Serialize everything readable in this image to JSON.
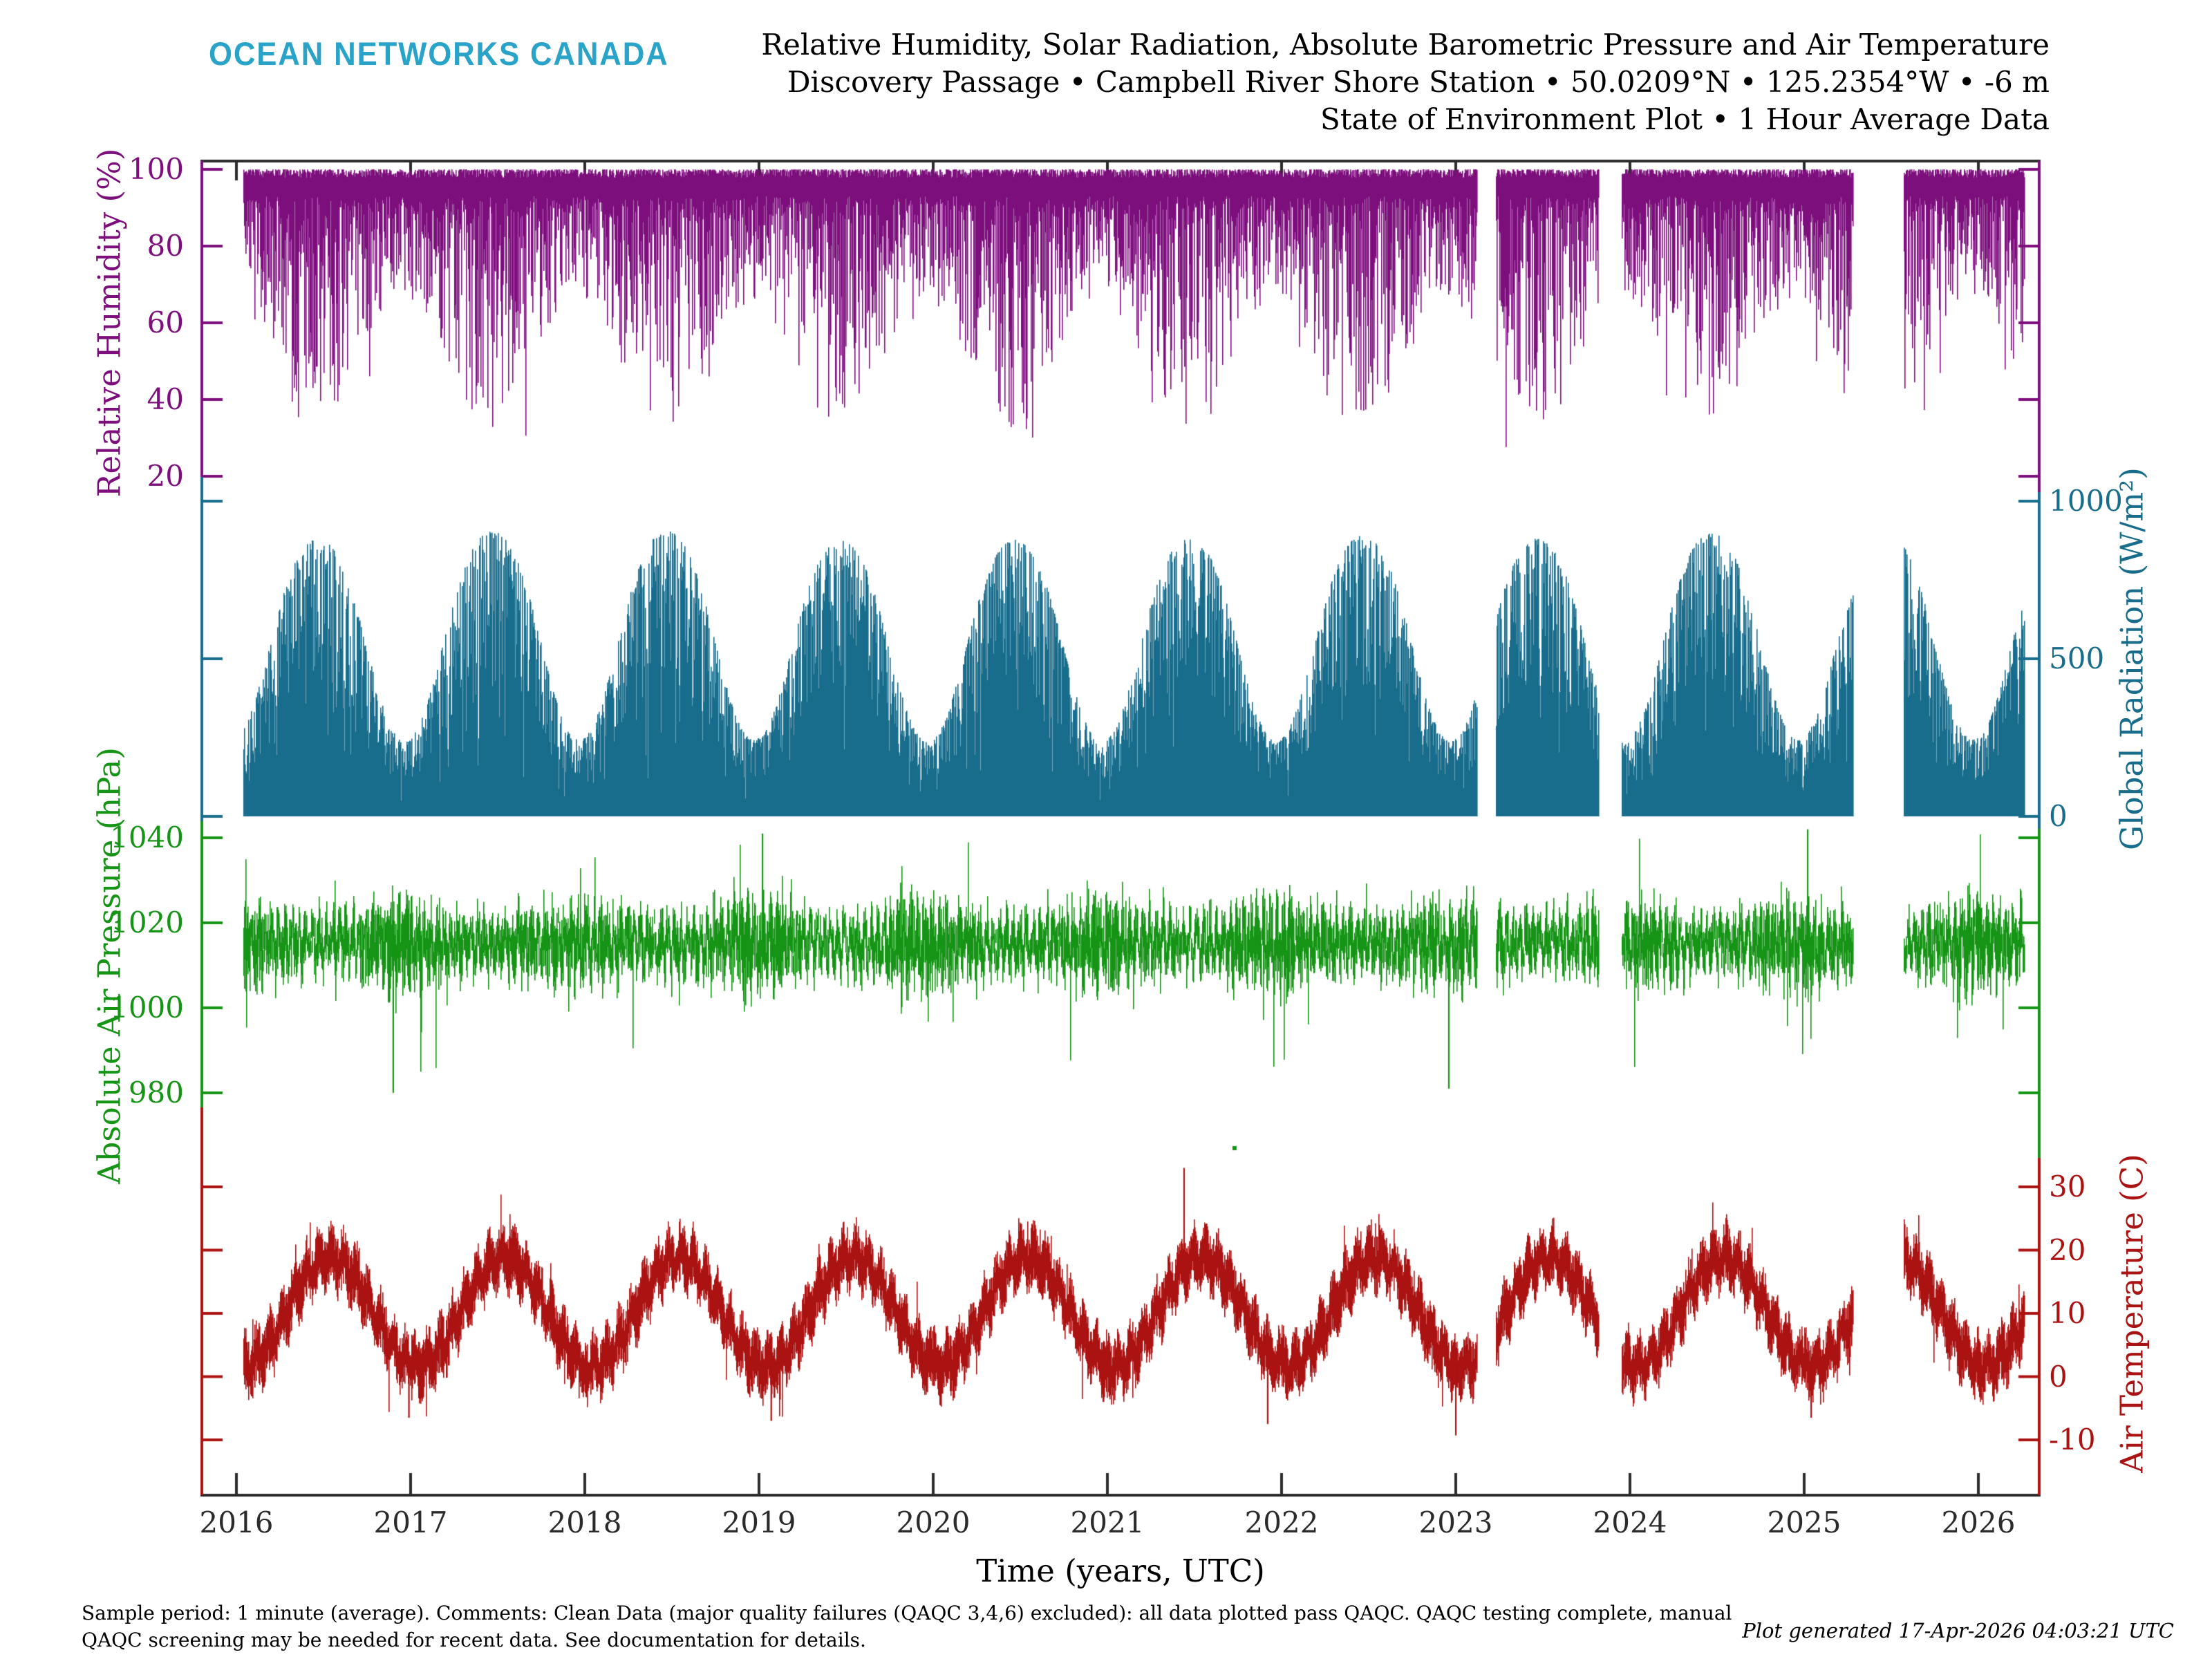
{
  "header": {
    "logo": "OCEAN NETWORKS CANADA",
    "logo_color": "#2aa3c9",
    "title_line1": "Relative Humidity, Solar Radiation, Absolute Barometric Pressure and Air Temperature",
    "title_line2": "Discovery Passage • Campbell River Shore Station • 50.0209°N • 125.2354°W • -6 m",
    "title_line3": "State of Environment Plot • 1 Hour Average Data"
  },
  "footer": {
    "note_line1": "Sample period: 1 minute (average). Comments: Clean Data (major quality failures (QAQC 3,4,6) excluded): all data plotted pass QAQC. QAQC testing complete, manual",
    "note_line2": "QAQC screening may be needed for recent data. See documentation for details.",
    "generated": "Plot generated 17-Apr-2026 04:03:21 UTC"
  },
  "chart_data": {
    "type": "line",
    "title": "Relative Humidity, Solar Radiation, Absolute Barometric Pressure and Air Temperature",
    "xlabel": "Time (years, UTC)",
    "x_range": [
      2015.8,
      2026.35
    ],
    "x_ticks": [
      2016,
      2017,
      2018,
      2019,
      2020,
      2021,
      2022,
      2023,
      2024,
      2025,
      2026
    ],
    "data_start": 2016.04,
    "data_end": 2026.26,
    "gaps": [
      [
        2023.12,
        2023.23
      ],
      [
        2023.82,
        2023.95
      ],
      [
        2025.28,
        2025.57
      ]
    ],
    "seed": 1337,
    "frame_color": "#2b2b2b",
    "panels": [
      {
        "id": "relative_humidity",
        "axis_label": "Relative Humidity (%)",
        "unit": "%",
        "color": "#7d0f7d",
        "label_side": "left",
        "ticks": [
          100,
          80,
          60,
          40,
          20
        ],
        "ylim": [
          10,
          102
        ],
        "model": "humidity",
        "params": {
          "top_jitter": 2.2,
          "base_dip": 7,
          "dip_winter": 26,
          "dip_summer": 60,
          "dip_pow": 1.7,
          "deep_prob": 0.06,
          "deep_extra": 20,
          "min": 16,
          "season_phase": 0.205
        },
        "events": []
      },
      {
        "id": "global_radiation",
        "axis_label": "Global Radiation (W/m²)",
        "unit": "W/m²",
        "color": "#186c8c",
        "label_side": "right",
        "ticks": [
          1000,
          500,
          0
        ],
        "ylim": [
          0,
          1050
        ],
        "model": "radiation",
        "params": {
          "max_flux": 1045,
          "elev_base": 40,
          "declination": 23.44,
          "equinox": 0.216,
          "shape": 1.15,
          "cloud_max": 0.55,
          "cloud_pow": 2.2,
          "deep_cloud_prob": 0.06,
          "year_variation": 0.05
        },
        "events": []
      },
      {
        "id": "absolute_air_pressure",
        "axis_label": "Absolute Air Pressure (hPa)",
        "unit": "hPa",
        "color": "#159415",
        "label_side": "left",
        "ticks": [
          1040,
          1020,
          1000,
          980
        ],
        "ylim": [
          976,
          1043
        ],
        "model": "pressure",
        "params": {
          "mean": 1015.5,
          "noise": 4.5,
          "wobble": 3,
          "wobble_freq": 26,
          "spread_min": 1.5,
          "spread_rand": 5,
          "winter_extra": 5,
          "low_spike_prob": 0.02,
          "low_spike_max": 24,
          "high_spike_prob": 0.012,
          "high_spike_max": 16,
          "min": 976.5,
          "max": 1042.5,
          "season_phase": 0.205
        },
        "events": [
          {
            "t": 2019.02,
            "value": 1041
          },
          {
            "t": 2025.02,
            "value": 1042
          },
          {
            "t": 2016.9,
            "value": 980
          },
          {
            "t": 2022.96,
            "value": 981
          },
          {
            "t": 2021.73,
            "value": 967,
            "detached": true
          }
        ]
      },
      {
        "id": "air_temperature",
        "axis_label": "Air Temperature (C)",
        "unit": "C",
        "color": "#ab1212",
        "label_side": "right",
        "ticks": [
          30,
          20,
          10,
          0,
          -10
        ],
        "ylim": [
          -10,
          33
        ],
        "model": "temperature",
        "params": {
          "mean": 10.2,
          "amp": 8.6,
          "phase": 0.285,
          "wobble": 1.6,
          "wobble_freq": 14,
          "spread_min": 1.6,
          "spread_rand": 3.4,
          "hot_prob": 0.02,
          "hot_extra": 5.5,
          "cold_prob": 0.018,
          "cold_extra": 7,
          "min": -9.5,
          "max": 33
        },
        "events": [
          {
            "t": 2021.44,
            "value": 33
          },
          {
            "t": 2021.92,
            "value": -7.5
          },
          {
            "t": 2023.0,
            "value": -9.3
          },
          {
            "t": 2016.99,
            "value": -6.5
          },
          {
            "t": 2019.07,
            "value": -7
          },
          {
            "t": 2025.04,
            "value": -6.5
          }
        ]
      }
    ]
  }
}
